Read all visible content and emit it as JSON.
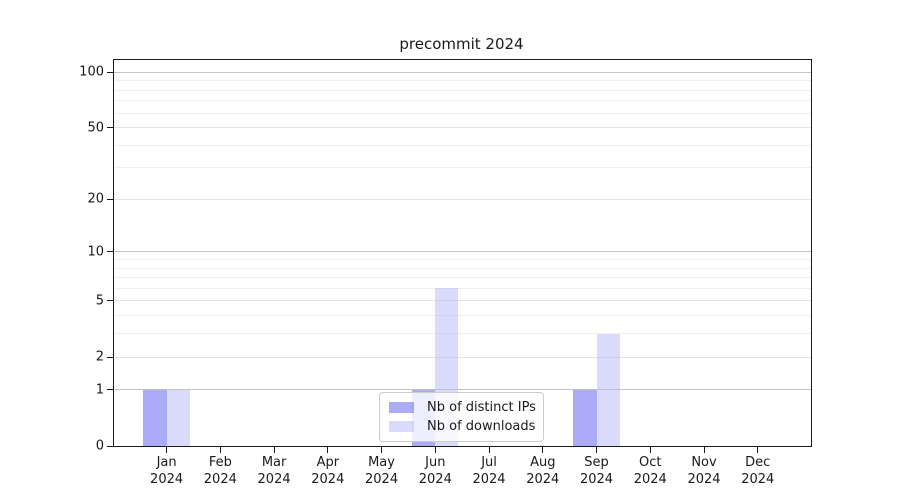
{
  "figure": {
    "background": "#ffffff"
  },
  "chart_data": {
    "type": "bar",
    "title": "precommit 2024",
    "categories": [
      "Jan",
      "Feb",
      "Mar",
      "Apr",
      "May",
      "Jun",
      "Jul",
      "Aug",
      "Sep",
      "Oct",
      "Nov",
      "Dec"
    ],
    "category_year": "2024",
    "series": [
      {
        "name": "Nb of distinct IPs",
        "color": "rgba(87,87,241,0.5)",
        "color_hex_on_white": "#ababf8",
        "values": [
          1,
          0,
          0,
          0,
          0,
          1,
          0,
          0,
          1,
          0,
          0,
          0
        ]
      },
      {
        "name": "Nb of downloads",
        "color": "rgba(181,181,245,0.5)",
        "color_hex_on_white": "#dadafa",
        "values": [
          1,
          0,
          0,
          0,
          0,
          6,
          0,
          0,
          3,
          0,
          0,
          0
        ]
      }
    ],
    "xlabel": "",
    "ylabel": "",
    "yaxis": {
      "scale": "log1p",
      "ticks": [
        0,
        1,
        2,
        5,
        10,
        20,
        50,
        100
      ],
      "ylim": [
        0,
        110
      ]
    },
    "grid": {
      "on": true,
      "major_values": [
        1,
        10,
        100
      ],
      "mid_values": [
        2,
        5,
        20,
        50
      ],
      "minor_values": [
        3,
        4,
        6,
        7,
        8,
        9,
        30,
        40,
        60,
        70,
        80,
        90
      ],
      "major_color": "#c3c3c3",
      "mid_color": "#e3e3e3",
      "minor_color": "#efefef"
    },
    "legend": {
      "position": "lower center"
    }
  }
}
